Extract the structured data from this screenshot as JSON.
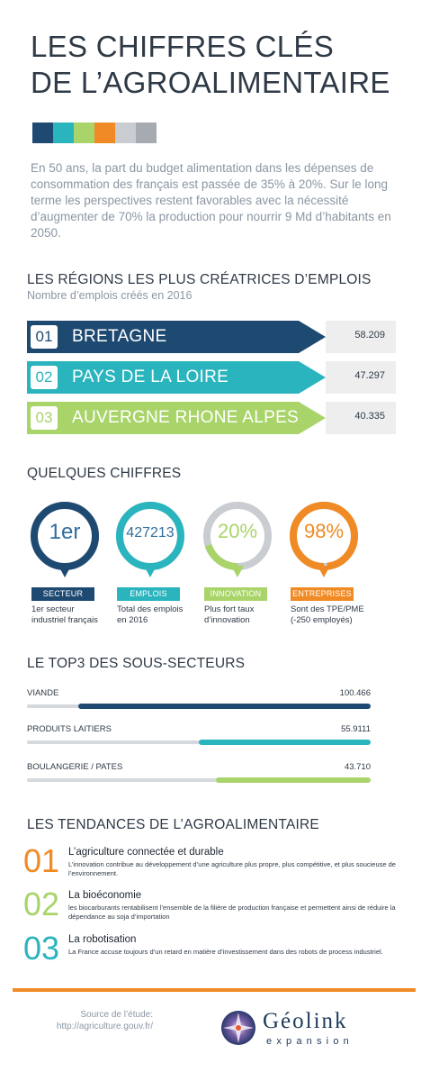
{
  "title": {
    "line1": "LES CHIFFRES CLÉS",
    "line2": "DE L’AGROALIMENTAIRE"
  },
  "palette": [
    "#1e4a72",
    "#2ab4be",
    "#a9d46a",
    "#f08a24",
    "#c9ccd0",
    "#a5abb1"
  ],
  "intro": "En 50 ans, la part du budget alimentation dans les dépenses de consommation des français est passée de 35% à 20%. Sur le long terme les perspectives restent favorables avec la nécessité d’augmenter de 70% la production pour nourrir 9 Md d’habitants en 2050.",
  "regions": {
    "title": "LES RÉGIONS LES PLUS CRÉATRICES D’EMPLOIS",
    "subtitle": "Nombre d’emplois créés en 2016",
    "items": [
      {
        "num": "01",
        "name": "BRETAGNE",
        "value": "58.209",
        "color": "#1e4a72"
      },
      {
        "num": "02",
        "name": "PAYS DE LA LOIRE",
        "value": "47.297",
        "color": "#2ab4be"
      },
      {
        "num": "03",
        "name": "AUVERGNE RHONE ALPES",
        "value": "40.335",
        "color": "#a9d46a"
      }
    ]
  },
  "figures": {
    "title": "QUELQUES CHIFFRES",
    "items": [
      {
        "value": "1er",
        "label": "SECTEUR",
        "desc": "1er secteur industriel français",
        "color": "#1e4a72",
        "fill": 1.0
      },
      {
        "value": "427213",
        "label": "EMPLOIS",
        "desc": "Total des emplois en 2016",
        "color": "#2ab4be",
        "fill": 1.0
      },
      {
        "value": "20%",
        "label": "INNOVATION",
        "desc": "Plus fort taux d’innovation",
        "color": "#a9d46a",
        "fill": 0.2
      },
      {
        "value": "98%",
        "label": "ENTREPRISES",
        "desc": "Sont des TPE/PME (-250 employés)",
        "color": "#f08a24",
        "fill": 0.98
      }
    ]
  },
  "top3": {
    "title": "LE TOP3 DES SOUS-SECTEURS",
    "items": [
      {
        "label": "VIANDE",
        "value": "100.466",
        "fraction": 0.85,
        "color": "#1e4a72"
      },
      {
        "label": "PRODUITS LAITIERS",
        "value": "55.9111",
        "fraction": 0.5,
        "color": "#2ab4be"
      },
      {
        "label": "BOULANGERIE / PATES",
        "value": "43.710",
        "fraction": 0.45,
        "color": "#a9d46a"
      }
    ]
  },
  "trends": {
    "title": "LES TENDANCES DE L’AGROALIMENTAIRE",
    "items": [
      {
        "num": "01",
        "title": "L’agriculture connectée et durable",
        "desc": "L’innovation contribue au développement d’une agriculture plus propre, plus compétitive, et plus soucieuse de l’environnement.",
        "color": "#f08a24"
      },
      {
        "num": "02",
        "title": "La bioéconomie",
        "desc": "les biocarburants rentabilisent l’ensemble de la filière de production française et permettent ainsi de réduire la dépendance au soja d’importation",
        "color": "#a9d46a"
      },
      {
        "num": "03",
        "title": "La robotisation",
        "desc": "La France accuse  toujours d’un retard en matière d’investissement dans des robots de process industriel.",
        "color": "#2ab4be"
      }
    ]
  },
  "footer": {
    "source_line1": "Source de l’étude:",
    "source_line2": "http://agriculture.gouv.fr/",
    "logo_name": "Géolink",
    "logo_sub": "expansion",
    "logo_icon": "compass-star-icon",
    "accent": "#f08a24"
  }
}
